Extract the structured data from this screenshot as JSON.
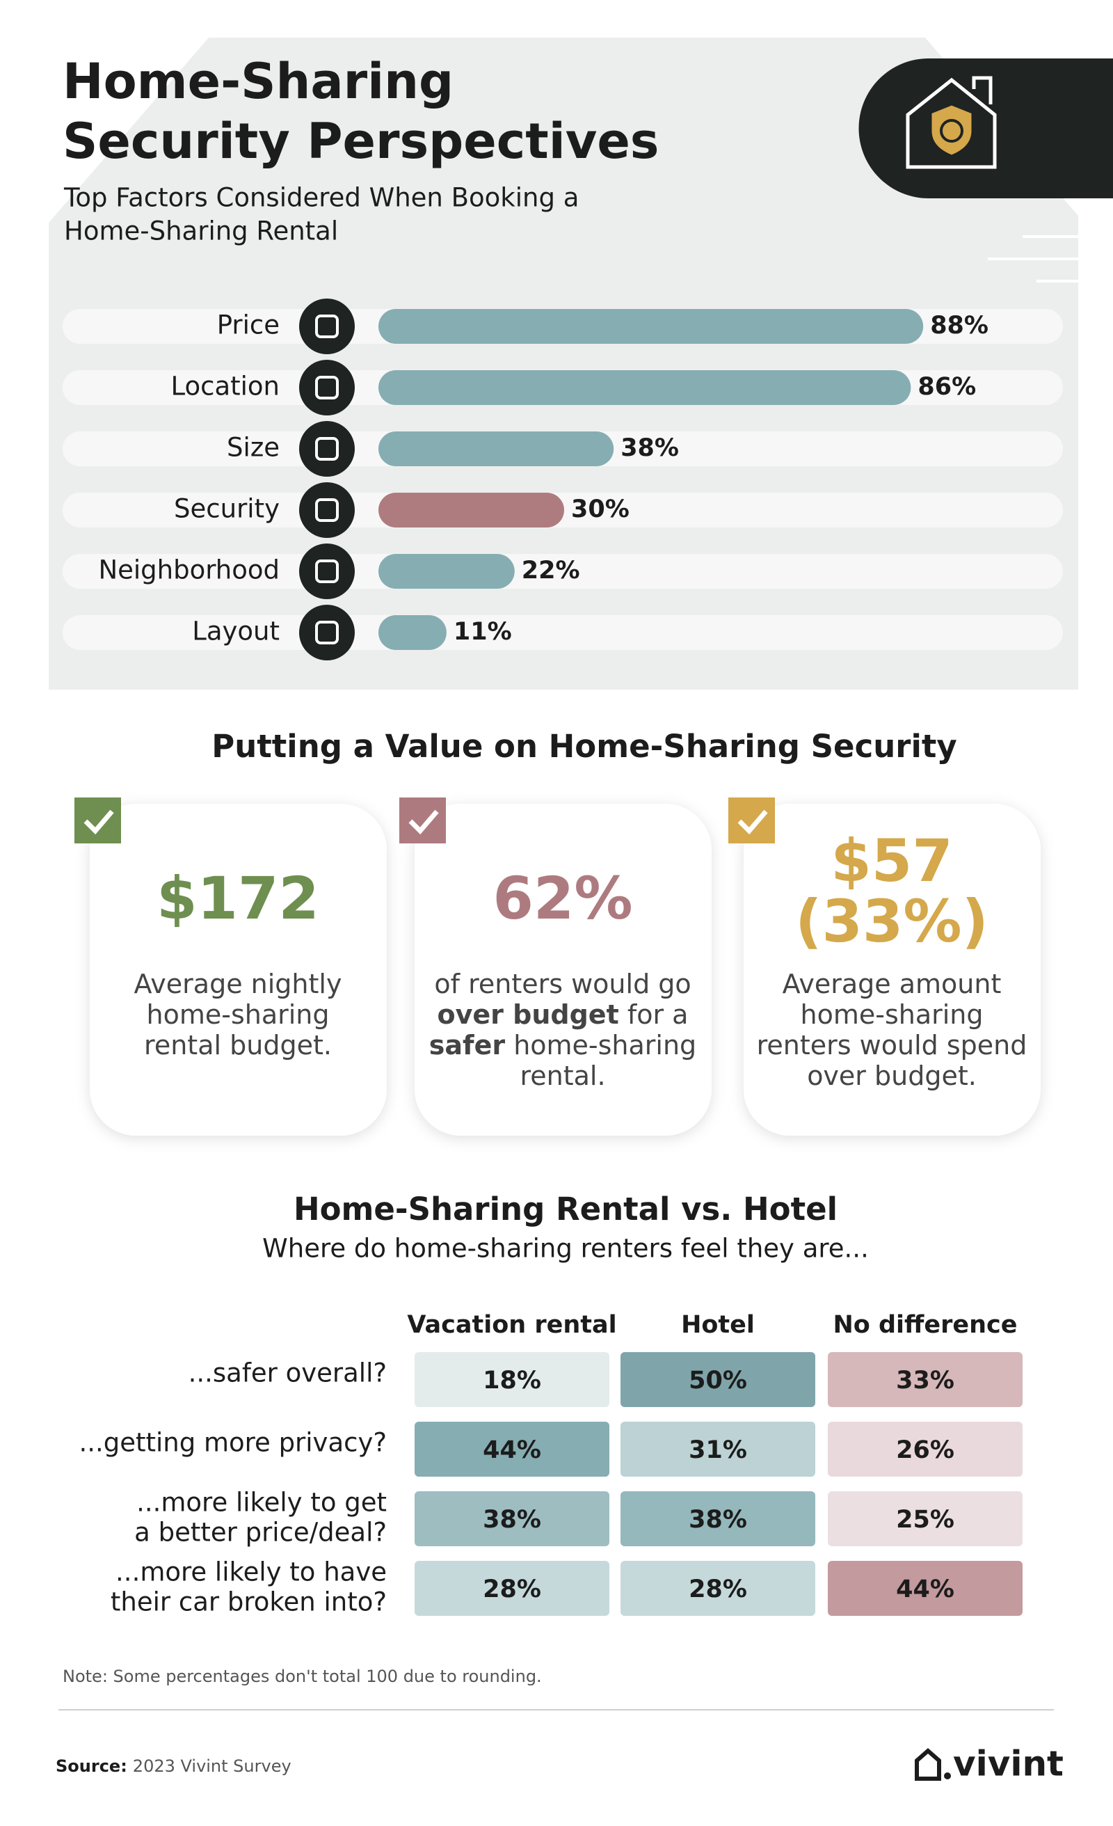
{
  "chart_data": {
    "type": "bar",
    "orientation": "horizontal",
    "title": [
      "Home-Sharing",
      "Security Perspectives"
    ],
    "subtitle": [
      "Top Factors Considered When Booking a",
      "Home-Sharing Rental"
    ],
    "categories": [
      "Price",
      "Location",
      "Size",
      "Security",
      "Neighborhood",
      "Layout"
    ],
    "values": [
      88,
      86,
      38,
      30,
      22,
      11
    ],
    "value_labels": [
      "88%",
      "86%",
      "38%",
      "30%",
      "22%",
      "11%"
    ],
    "colors": [
      "#86adb2",
      "#86adb2",
      "#86adb2",
      "#ae7c7f",
      "#86adb2",
      "#86adb2"
    ]
  },
  "value_section": {
    "heading": "Putting a Value on Home-Sharing Security",
    "cards": [
      {
        "color": "#6e8f4f",
        "headline": [
          "$172"
        ],
        "lines": [
          [
            {
              "text": "Average nightly"
            }
          ],
          [
            {
              "text": "home-sharing"
            }
          ],
          [
            {
              "text": "rental budget."
            }
          ]
        ]
      },
      {
        "color": "#ad7b7f",
        "headline": [
          "62%"
        ],
        "lines": [
          [
            {
              "text": "of renters would go"
            }
          ],
          [
            {
              "text": "over budget",
              "bold": true
            },
            {
              "text": " for a"
            }
          ],
          [
            {
              "text": "safer",
              "bold": true
            },
            {
              "text": " home-sharing"
            }
          ],
          [
            {
              "text": "rental."
            }
          ]
        ]
      },
      {
        "color": "#d4a84b",
        "headline": [
          "$57",
          "(33%)"
        ],
        "lines": [
          [
            {
              "text": "Average amount"
            }
          ],
          [
            {
              "text": "home-sharing"
            }
          ],
          [
            {
              "text": "renters would spend"
            }
          ],
          [
            {
              "text": "over budget."
            }
          ]
        ]
      }
    ]
  },
  "comparison": {
    "heading": "Home-Sharing Rental vs. Hotel",
    "subheading": "Where do home-sharing renters feel they are...",
    "columns": [
      "Vacation rental",
      "Hotel",
      "No difference"
    ],
    "rows": [
      {
        "question": [
          "...safer overall?"
        ],
        "cells": [
          "18%",
          "50%",
          "33%"
        ],
        "colors": [
          "#e3ebeb",
          "#7fa5aa",
          "#d6b7ba"
        ]
      },
      {
        "question": [
          "...getting more privacy?"
        ],
        "cells": [
          "44%",
          "31%",
          "26%"
        ],
        "colors": [
          "#86adb2",
          "#bcd2d4",
          "#ead9dc"
        ]
      },
      {
        "question": [
          "...more likely to get",
          "a better price/deal?"
        ],
        "cells": [
          "38%",
          "38%",
          "25%"
        ],
        "colors": [
          "#9dbdc1",
          "#94b8bc",
          "#ecdfe2"
        ]
      },
      {
        "question": [
          "...more likely to have",
          "their car broken into?"
        ],
        "cells": [
          "28%",
          "28%",
          "44%"
        ],
        "colors": [
          "#c5d9db",
          "#c5d9db",
          "#c39a9e"
        ]
      }
    ]
  },
  "note": "Note: Some percentages don't total 100 due to rounding.",
  "source": {
    "label": "Source:",
    "text": "2023 Vivint Survey"
  },
  "brand": "vivint"
}
